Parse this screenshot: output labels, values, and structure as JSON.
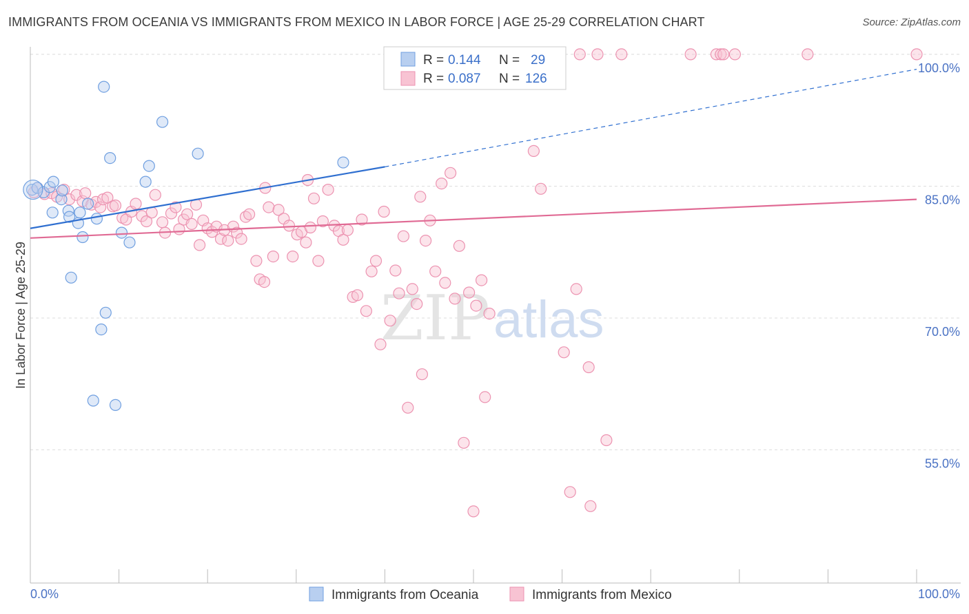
{
  "header": {
    "title": "IMMIGRANTS FROM OCEANIA VS IMMIGRANTS FROM MEXICO IN LABOR FORCE | AGE 25-29 CORRELATION CHART",
    "source": "Source: ZipAtlas.com"
  },
  "watermark": {
    "zip": "ZIP",
    "atlas": "atlas"
  },
  "legend": {
    "oceania": {
      "r_label": "R =",
      "r_value": "0.144",
      "n_label": "N =",
      "n_value": "29"
    },
    "mexico": {
      "r_label": "R =",
      "r_value": "0.087",
      "n_label": "N =",
      "n_value": "126"
    }
  },
  "colors": {
    "oceania_fill": "#b8cff0",
    "oceania_stroke": "#6f9fe0",
    "oceania_line": "#2f6fd0",
    "mexico_fill": "#f8c3d3",
    "mexico_stroke": "#ec92b0",
    "mexico_line": "#e06a94",
    "tick_text": "#4a72c4",
    "grid": "#dddddd"
  },
  "chart_data": {
    "type": "scatter",
    "title": "IMMIGRANTS FROM OCEANIA VS IMMIGRANTS FROM MEXICO IN LABOR FORCE | AGE 25-29 CORRELATION CHART",
    "xlabel": "",
    "ylabel": "In Labor Force | Age 25-29",
    "xlim": [
      0,
      100
    ],
    "ylim": [
      40,
      101.5
    ],
    "x_tick_labels": [
      "0.0%",
      "100.0%"
    ],
    "y_ticks": [
      55,
      70,
      85,
      100
    ],
    "y_tick_labels": [
      "55.0%",
      "70.0%",
      "85.0%",
      "100.0%"
    ],
    "grid": true,
    "legend_position": "top-center",
    "series": [
      {
        "name": "Immigrants from Oceania",
        "r": 0.144,
        "n": 29,
        "trend": {
          "x0": 0,
          "y0": 80.2,
          "x1": 40,
          "y1": 87.2,
          "dashed_to_x": 100,
          "dashed_to_y": 98.3
        },
        "points": [
          [
            0.2,
            84.6
          ],
          [
            0.8,
            84.8
          ],
          [
            1.5,
            84.3
          ],
          [
            2.2,
            84.9
          ],
          [
            2.6,
            85.5
          ],
          [
            3.5,
            83.5
          ],
          [
            3.6,
            84.5
          ],
          [
            2.5,
            82.0
          ],
          [
            4.3,
            82.2
          ],
          [
            4.4,
            81.5
          ],
          [
            5.4,
            80.8
          ],
          [
            5.6,
            82.0
          ],
          [
            6.5,
            83.0
          ],
          [
            7.5,
            81.3
          ],
          [
            5.9,
            79.2
          ],
          [
            8.3,
            96.3
          ],
          [
            9.0,
            88.2
          ],
          [
            10.3,
            79.7
          ],
          [
            11.2,
            78.6
          ],
          [
            13.0,
            85.5
          ],
          [
            13.4,
            87.3
          ],
          [
            14.9,
            92.3
          ],
          [
            18.9,
            88.7
          ],
          [
            35.3,
            87.7
          ],
          [
            4.6,
            74.6
          ],
          [
            8.5,
            70.6
          ],
          [
            8.0,
            68.7
          ],
          [
            7.1,
            60.6
          ],
          [
            9.6,
            60.1
          ]
        ]
      },
      {
        "name": "Immigrants from Mexico",
        "r": 0.087,
        "n": 126,
        "trend": {
          "x0": 0,
          "y0": 79.1,
          "x1": 100,
          "y1": 83.5
        },
        "points": [
          [
            0.4,
            84.3
          ],
          [
            0.8,
            84.8
          ],
          [
            1.6,
            84.1
          ],
          [
            2.4,
            84.2
          ],
          [
            3.0,
            83.8
          ],
          [
            3.8,
            84.6
          ],
          [
            4.4,
            83.5
          ],
          [
            5.2,
            84.0
          ],
          [
            5.9,
            83.3
          ],
          [
            6.2,
            84.2
          ],
          [
            6.9,
            82.9
          ],
          [
            7.4,
            83.2
          ],
          [
            7.9,
            82.6
          ],
          [
            8.2,
            83.5
          ],
          [
            8.7,
            83.7
          ],
          [
            9.3,
            82.7
          ],
          [
            9.6,
            82.8
          ],
          [
            10.4,
            81.4
          ],
          [
            10.8,
            81.2
          ],
          [
            11.4,
            82.1
          ],
          [
            11.9,
            83.0
          ],
          [
            12.6,
            81.6
          ],
          [
            13.1,
            81.0
          ],
          [
            13.7,
            82.0
          ],
          [
            14.1,
            84.0
          ],
          [
            14.9,
            80.9
          ],
          [
            15.2,
            79.7
          ],
          [
            15.9,
            81.9
          ],
          [
            16.4,
            82.6
          ],
          [
            16.8,
            80.1
          ],
          [
            17.3,
            81.2
          ],
          [
            17.7,
            81.8
          ],
          [
            18.2,
            80.7
          ],
          [
            18.7,
            82.9
          ],
          [
            19.1,
            78.3
          ],
          [
            19.5,
            81.1
          ],
          [
            20.0,
            80.2
          ],
          [
            20.5,
            79.8
          ],
          [
            21.0,
            80.4
          ],
          [
            21.5,
            79.0
          ],
          [
            21.9,
            80.0
          ],
          [
            22.3,
            78.8
          ],
          [
            22.9,
            80.4
          ],
          [
            23.3,
            79.7
          ],
          [
            23.8,
            79.0
          ],
          [
            24.3,
            81.5
          ],
          [
            24.7,
            81.8
          ],
          [
            25.5,
            76.5
          ],
          [
            25.9,
            74.4
          ],
          [
            26.5,
            84.8
          ],
          [
            26.9,
            82.6
          ],
          [
            27.4,
            77.0
          ],
          [
            28.0,
            82.3
          ],
          [
            28.6,
            81.3
          ],
          [
            29.2,
            80.5
          ],
          [
            29.6,
            77.0
          ],
          [
            30.1,
            79.5
          ],
          [
            30.6,
            79.8
          ],
          [
            31.1,
            78.6
          ],
          [
            31.6,
            80.3
          ],
          [
            32.0,
            83.6
          ],
          [
            32.5,
            76.5
          ],
          [
            33.0,
            81.0
          ],
          [
            33.6,
            84.6
          ],
          [
            34.3,
            80.5
          ],
          [
            34.8,
            79.9
          ],
          [
            35.3,
            78.9
          ],
          [
            35.8,
            80.0
          ],
          [
            36.4,
            72.4
          ],
          [
            36.9,
            72.6
          ],
          [
            37.4,
            81.2
          ],
          [
            37.9,
            70.8
          ],
          [
            38.5,
            75.3
          ],
          [
            39.0,
            76.5
          ],
          [
            39.5,
            67.0
          ],
          [
            39.9,
            82.1
          ],
          [
            40.6,
            69.7
          ],
          [
            41.2,
            75.4
          ],
          [
            41.6,
            72.8
          ],
          [
            42.1,
            79.3
          ],
          [
            42.6,
            59.8
          ],
          [
            43.1,
            73.3
          ],
          [
            43.6,
            71.6
          ],
          [
            44.2,
            63.6
          ],
          [
            44.6,
            78.8
          ],
          [
            45.1,
            81.1
          ],
          [
            45.7,
            75.3
          ],
          [
            46.4,
            85.3
          ],
          [
            46.8,
            74.0
          ],
          [
            47.4,
            86.5
          ],
          [
            47.9,
            72.2
          ],
          [
            48.4,
            78.2
          ],
          [
            48.9,
            55.8
          ],
          [
            49.5,
            72.9
          ],
          [
            50.0,
            48.0
          ],
          [
            50.3,
            71.4
          ],
          [
            50.9,
            74.3
          ],
          [
            51.3,
            61.0
          ],
          [
            51.8,
            70.5
          ],
          [
            52.9,
            100.0
          ],
          [
            53.7,
            100.0
          ],
          [
            54.2,
            100.0
          ],
          [
            55.0,
            100.0
          ],
          [
            56.4,
            100.0
          ],
          [
            56.8,
            89.0
          ],
          [
            57.6,
            84.7
          ],
          [
            58.4,
            100.0
          ],
          [
            60.2,
            66.1
          ],
          [
            60.9,
            50.2
          ],
          [
            61.6,
            73.3
          ],
          [
            62.0,
            100.0
          ],
          [
            63.0,
            64.4
          ],
          [
            63.2,
            48.6
          ],
          [
            64.0,
            100.0
          ],
          [
            65.0,
            56.1
          ],
          [
            66.7,
            100.0
          ],
          [
            74.5,
            100.0
          ],
          [
            77.4,
            100.0
          ],
          [
            77.9,
            100.0
          ],
          [
            78.2,
            100.0
          ],
          [
            79.5,
            100.0
          ],
          [
            87.7,
            100.0
          ],
          [
            100.0,
            100.0
          ],
          [
            26.4,
            74.1
          ],
          [
            31.3,
            85.7
          ],
          [
            44.0,
            83.8
          ]
        ]
      }
    ],
    "bottom_legend": [
      "Immigrants from Oceania",
      "Immigrants from Mexico"
    ]
  }
}
